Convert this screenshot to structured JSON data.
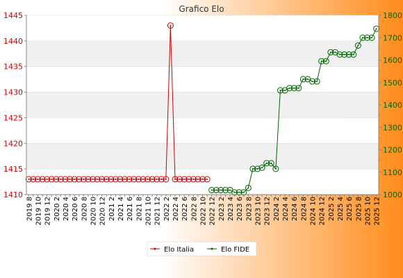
{
  "colors": {
    "background_left": "#ffffff",
    "background_right": "#ff8c1a",
    "plot_band_light": "#ffffff",
    "plot_band_dark": "#f0f0f0",
    "series_italia": "#cc0000",
    "series_fide": "#006600",
    "axis_left_text": "#cc0000",
    "axis_right_text": "#006600"
  },
  "chart_data": {
    "type": "line",
    "title": "Grafico Elo",
    "categories": [
      "2019 8",
      "2019 9",
      "2019 10",
      "2019 11",
      "2019 12",
      "2020 1",
      "2020 2",
      "2020 3",
      "2020 4",
      "2020 5",
      "2020 6",
      "2020 7",
      "2020 8",
      "2020 9",
      "2020 10",
      "2020 11",
      "2020 12",
      "2021 1",
      "2021 2",
      "2021 3",
      "2021 4",
      "2021 5",
      "2021 6",
      "2021 7",
      "2021 8",
      "2021 9",
      "2021 10",
      "2021 11",
      "2021 12",
      "2022 1",
      "2022 2",
      "2022 3",
      "2022 4",
      "2022 5",
      "2022 6",
      "2022 7",
      "2022 8",
      "2022 9",
      "2022 10",
      "2022 11",
      "2022 12",
      "2023 1",
      "2023 2",
      "2023 3",
      "2023 4",
      "2023 5",
      "2023 6",
      "2023 7",
      "2023 8",
      "2023 9",
      "2023 10",
      "2023 11",
      "2023 12",
      "2024 1",
      "2024 2",
      "2024 3",
      "2024 4",
      "2024 5",
      "2024 6",
      "2024 7",
      "2024 8",
      "2024 9",
      "2024 10",
      "2024 11",
      "2024 12",
      "2025 1",
      "2025 2",
      "2025 3",
      "2025 4",
      "2025 5",
      "2025 6",
      "2025 7",
      "2025 8",
      "2025 9",
      "2025 10",
      "2025 11",
      "2025 12"
    ],
    "category_labels": [
      "2019 8",
      "2019 10",
      "2019 12",
      "2020 2",
      "2020 4",
      "2020 6",
      "2020 8",
      "2020 10",
      "2020 12",
      "2021 2",
      "2021 4",
      "2021 6",
      "2021 8",
      "2021 10",
      "2021 12",
      "2022 2",
      "2022 4",
      "2022 6",
      "2022 8",
      "2022 10",
      "2022 12",
      "2023 2",
      "2023 4",
      "2023 6",
      "2023 8",
      "2023 10",
      "2023 12",
      "2024 2",
      "2024 4",
      "2024 6",
      "2024 8",
      "2024 10",
      "2024 12",
      "2025 2",
      "2025 4",
      "2025 6",
      "2025 8",
      "2025 10",
      "2025 12"
    ],
    "y_left": {
      "min": 1410,
      "max": 1445,
      "ticks": [
        1410,
        1415,
        1420,
        1425,
        1430,
        1435,
        1440,
        1445
      ]
    },
    "y_right": {
      "min": 1000,
      "max": 1800,
      "ticks": [
        1000,
        1100,
        1200,
        1300,
        1400,
        1500,
        1600,
        1700,
        1800
      ]
    },
    "series": [
      {
        "name": "Elo Italia",
        "axis": "left",
        "values": [
          1413,
          1413,
          1413,
          1413,
          1413,
          1413,
          1413,
          1413,
          1413,
          1413,
          1413,
          1413,
          1413,
          1413,
          1413,
          1413,
          1413,
          1413,
          1413,
          1413,
          1413,
          1413,
          1413,
          1413,
          1413,
          1413,
          1413,
          1413,
          1413,
          1413,
          1413,
          1443,
          1413,
          1413,
          1413,
          1413,
          1413,
          1413,
          1413,
          1413,
          null,
          null,
          null,
          null,
          null,
          null,
          null,
          null,
          null,
          null,
          null,
          null,
          null,
          null,
          null,
          null,
          null,
          null,
          null,
          null,
          null,
          null,
          null,
          null,
          null,
          null,
          null,
          null,
          null,
          null,
          null,
          null,
          null,
          null,
          null,
          null,
          null
        ]
      },
      {
        "name": "Elo FIDE",
        "axis": "right",
        "values": [
          null,
          null,
          null,
          null,
          null,
          null,
          null,
          null,
          null,
          null,
          null,
          null,
          null,
          null,
          null,
          null,
          null,
          null,
          null,
          null,
          null,
          null,
          null,
          null,
          null,
          null,
          null,
          null,
          null,
          null,
          null,
          null,
          null,
          null,
          null,
          null,
          null,
          null,
          null,
          null,
          1020,
          1020,
          1020,
          1020,
          1020,
          1010,
          1010,
          1010,
          1030,
          1115,
          1115,
          1120,
          1140,
          1140,
          1115,
          1465,
          1465,
          1475,
          1475,
          1475,
          1515,
          1515,
          1505,
          1505,
          1595,
          1595,
          1635,
          1635,
          1625,
          1625,
          1625,
          1625,
          1665,
          1700,
          1700,
          1700,
          1740
        ]
      }
    ],
    "legend_position": "bottom-center",
    "grid": true
  }
}
